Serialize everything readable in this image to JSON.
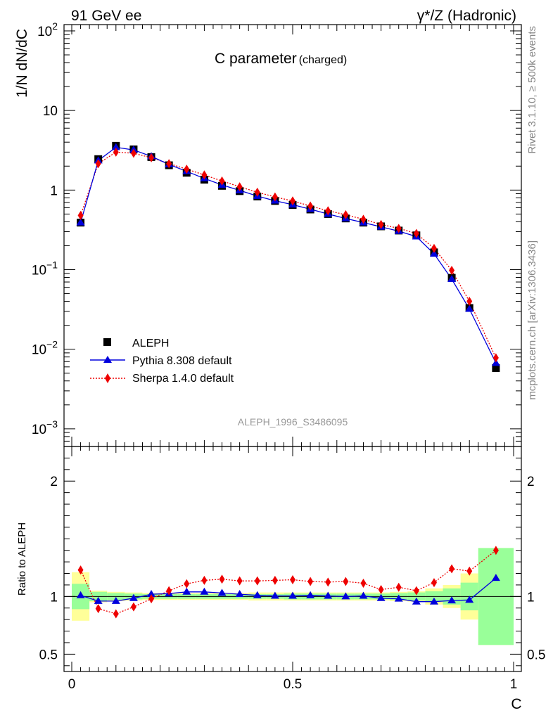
{
  "header": {
    "left": "91 GeV ee",
    "right": "γ*/Z (Hadronic)"
  },
  "side": {
    "top": "Rivet 3.1.10, ≥ 500k events",
    "bottom": "mcplots.cern.ch [arXiv:1306.3436]"
  },
  "chart_data": {
    "type": "scatter",
    "title": "C parameter",
    "title_sub": "(charged)",
    "analysis": "ALEPH_1996_S3486095",
    "xlabel": "C",
    "ylabel": "1/N dN/dC",
    "ratio_ylabel": "Ratio to ALEPH",
    "xlim": [
      -0.02,
      1.0
    ],
    "ylim": [
      0.0006,
      120
    ],
    "yscale": "log",
    "ratio_ylim": [
      0.35,
      2.3
    ],
    "x_ticks": [
      0,
      0.5,
      1
    ],
    "x_tick_labels": [
      "0",
      "0.5",
      "1"
    ],
    "y_ticks": [
      0.001,
      0.01,
      0.1,
      1,
      10,
      100
    ],
    "y_tick_labels": [
      {
        "base": "10",
        "exp": "−3"
      },
      {
        "base": "10",
        "exp": "−2"
      },
      {
        "base": "10",
        "exp": "−1"
      },
      {
        "base": "1",
        "exp": ""
      },
      {
        "base": "10",
        "exp": ""
      },
      {
        "base": "10",
        "exp": "2"
      }
    ],
    "ratio_ticks": [
      0.5,
      1,
      2
    ],
    "ratio_tick_labels": [
      "0.5",
      "1",
      "2"
    ],
    "x": [
      0.02,
      0.06,
      0.1,
      0.14,
      0.18,
      0.22,
      0.26,
      0.3,
      0.34,
      0.38,
      0.42,
      0.46,
      0.5,
      0.54,
      0.58,
      0.62,
      0.66,
      0.7,
      0.74,
      0.78,
      0.82,
      0.86,
      0.9,
      0.96
    ],
    "bin_edges": [
      0,
      0.04,
      0.08,
      0.12,
      0.16,
      0.2,
      0.24,
      0.28,
      0.32,
      0.36,
      0.4,
      0.44,
      0.48,
      0.52,
      0.56,
      0.6,
      0.64,
      0.68,
      0.72,
      0.76,
      0.8,
      0.84,
      0.88,
      0.92,
      1.0
    ],
    "band_stat": [
      0.11,
      0.04,
      0.03,
      0.025,
      0.02,
      0.02,
      0.02,
      0.02,
      0.02,
      0.02,
      0.02,
      0.02,
      0.025,
      0.025,
      0.025,
      0.025,
      0.025,
      0.025,
      0.03,
      0.035,
      0.045,
      0.07,
      0.12,
      0.42
    ],
    "band_total": [
      0.21,
      0.05,
      0.04,
      0.035,
      0.03,
      0.03,
      0.03,
      0.03,
      0.03,
      0.03,
      0.035,
      0.035,
      0.035,
      0.035,
      0.035,
      0.035,
      0.035,
      0.035,
      0.04,
      0.045,
      0.07,
      0.1,
      0.2,
      0.42
    ],
    "series": [
      {
        "name": "ALEPH",
        "marker": "square",
        "color": "#000000",
        "values": [
          0.39,
          2.45,
          3.6,
          3.25,
          2.6,
          2.05,
          1.65,
          1.35,
          1.13,
          0.97,
          0.83,
          0.73,
          0.65,
          0.57,
          0.5,
          0.44,
          0.39,
          0.35,
          0.31,
          0.27,
          0.165,
          0.079,
          0.033,
          0.0058
        ]
      },
      {
        "name": "Pythia 8.308 default",
        "marker": "triangle",
        "color": "#0000dd",
        "line": "solid",
        "values": [
          0.39,
          2.35,
          3.45,
          3.2,
          2.65,
          2.1,
          1.72,
          1.4,
          1.16,
          0.99,
          0.84,
          0.735,
          0.655,
          0.575,
          0.5,
          0.44,
          0.39,
          0.345,
          0.305,
          0.26,
          0.158,
          0.076,
          0.032,
          0.0067
        ]
      },
      {
        "name": "Sherpa 1.4.0 default",
        "marker": "diamond",
        "color": "#ee0000",
        "line": "dotted",
        "values": [
          0.48,
          2.15,
          3.0,
          2.9,
          2.55,
          2.15,
          1.83,
          1.55,
          1.3,
          1.1,
          0.94,
          0.82,
          0.73,
          0.63,
          0.55,
          0.49,
          0.43,
          0.37,
          0.33,
          0.285,
          0.185,
          0.098,
          0.04,
          0.0078
        ]
      }
    ],
    "ratios": [
      {
        "name": "Pythia 8.308 default",
        "values": [
          1.01,
          0.96,
          0.96,
          0.985,
          1.02,
          1.025,
          1.04,
          1.04,
          1.03,
          1.02,
          1.01,
          1.005,
          1.005,
          1.01,
          1.005,
          1.0,
          1.005,
          0.985,
          0.98,
          0.955,
          0.955,
          0.965,
          0.97,
          1.16
        ]
      },
      {
        "name": "Sherpa 1.4.0 default",
        "values": [
          1.23,
          0.895,
          0.85,
          0.91,
          0.98,
          1.05,
          1.11,
          1.14,
          1.15,
          1.135,
          1.135,
          1.14,
          1.145,
          1.13,
          1.125,
          1.13,
          1.115,
          1.06,
          1.08,
          1.05,
          1.12,
          1.24,
          1.22,
          1.4
        ]
      }
    ]
  }
}
